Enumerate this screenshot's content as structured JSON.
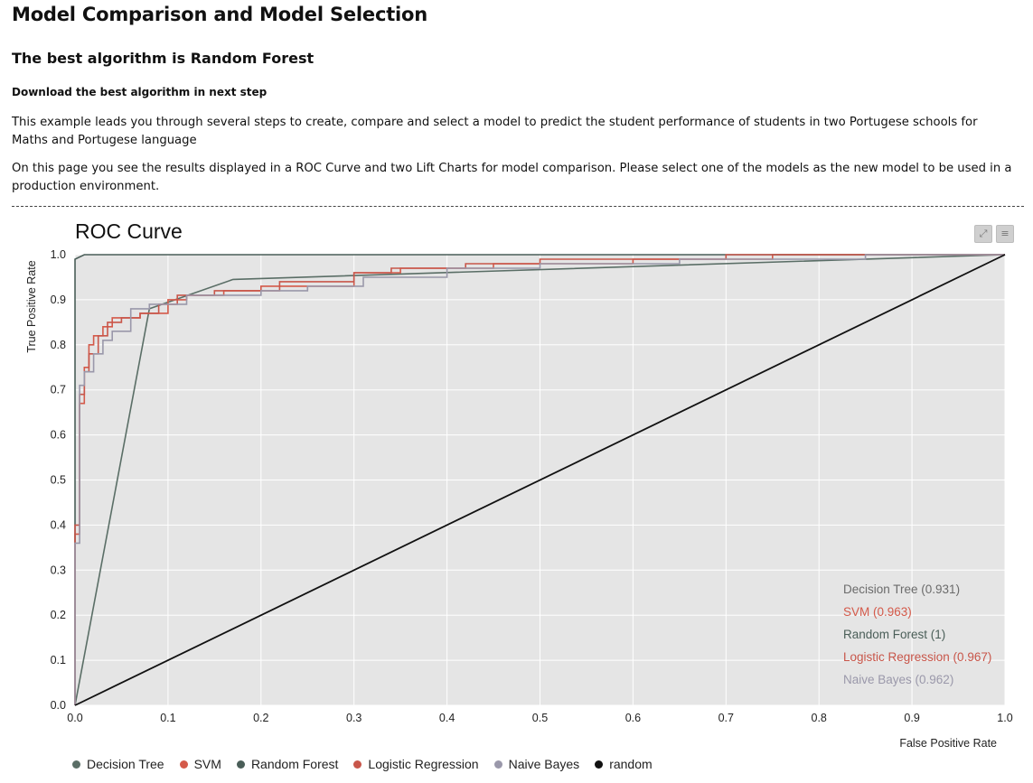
{
  "header": {
    "title": "Model Comparison and Model Selection",
    "best_label": "The best algorithm is Random Forest",
    "download_label": "Download the best algorithm in next step"
  },
  "intro": {
    "p1": "This example leads you through several steps to create, compare and select a model to predict the student performance of students in two Portugese schools for Maths and Portugese language",
    "p2": "On this page you see the results displayed in a ROC Curve and two Lift Charts for model comparison. Please select one of the models as the new model to be used in a production environment."
  },
  "toolbar": {
    "expand_icon": "expand-icon",
    "menu_icon": "menu-icon"
  },
  "chart_data": {
    "type": "line",
    "title": "ROC Curve",
    "xlabel": "False Positive Rate",
    "ylabel": "True Positive Rate",
    "xlim": [
      0,
      1
    ],
    "ylim": [
      0,
      1
    ],
    "xticks": [
      "0.0",
      "0.1",
      "0.2",
      "0.3",
      "0.4",
      "0.5",
      "0.6",
      "0.7",
      "0.8",
      "0.9",
      "1.0"
    ],
    "yticks": [
      "0.0",
      "0.1",
      "0.2",
      "0.3",
      "0.4",
      "0.5",
      "0.6",
      "0.7",
      "0.8",
      "0.9",
      "1.0"
    ],
    "grid": true,
    "legend_position": "bottom",
    "auc_labels": [
      {
        "text": "Decision Tree (0.931)",
        "color": "#6b6b6b"
      },
      {
        "text": "SVM (0.963)",
        "color": "#d45a4a"
      },
      {
        "text": "Random Forest (1)",
        "color": "#4a5e58"
      },
      {
        "text": "Logistic Regression (0.967)",
        "color": "#c8564a"
      },
      {
        "text": "Naive Bayes (0.962)",
        "color": "#9a98aa"
      }
    ],
    "series": [
      {
        "name": "Decision Tree",
        "color": "#5a6e66",
        "points": [
          [
            0,
            0
          ],
          [
            0.08,
            0.88
          ],
          [
            0.17,
            0.945
          ],
          [
            1,
            1
          ]
        ]
      },
      {
        "name": "SVM",
        "color": "#d45a4a",
        "points": [
          [
            0,
            0
          ],
          [
            0,
            0.38
          ],
          [
            0.005,
            0.38
          ],
          [
            0.005,
            0.67
          ],
          [
            0.01,
            0.67
          ],
          [
            0.01,
            0.75
          ],
          [
            0.015,
            0.75
          ],
          [
            0.015,
            0.8
          ],
          [
            0.02,
            0.8
          ],
          [
            0.02,
            0.82
          ],
          [
            0.03,
            0.82
          ],
          [
            0.03,
            0.84
          ],
          [
            0.04,
            0.84
          ],
          [
            0.04,
            0.86
          ],
          [
            0.05,
            0.86
          ],
          [
            0.07,
            0.86
          ],
          [
            0.07,
            0.87
          ],
          [
            0.1,
            0.87
          ],
          [
            0.1,
            0.9
          ],
          [
            0.12,
            0.9
          ],
          [
            0.12,
            0.91
          ],
          [
            0.16,
            0.91
          ],
          [
            0.16,
            0.92
          ],
          [
            0.2,
            0.92
          ],
          [
            0.2,
            0.93
          ],
          [
            0.3,
            0.93
          ],
          [
            0.3,
            0.96
          ],
          [
            0.35,
            0.96
          ],
          [
            0.35,
            0.97
          ],
          [
            0.45,
            0.97
          ],
          [
            0.45,
            0.98
          ],
          [
            0.6,
            0.98
          ],
          [
            0.6,
            0.99
          ],
          [
            0.75,
            0.99
          ],
          [
            0.75,
            1
          ],
          [
            1,
            1
          ]
        ]
      },
      {
        "name": "Random Forest",
        "color": "#4a5e58",
        "points": [
          [
            0,
            0
          ],
          [
            0,
            0.99
          ],
          [
            0.01,
            1
          ],
          [
            1,
            1
          ]
        ]
      },
      {
        "name": "Logistic Regression",
        "color": "#c8564a",
        "points": [
          [
            0,
            0
          ],
          [
            0,
            0.4
          ],
          [
            0.005,
            0.4
          ],
          [
            0.005,
            0.69
          ],
          [
            0.01,
            0.69
          ],
          [
            0.01,
            0.74
          ],
          [
            0.015,
            0.74
          ],
          [
            0.015,
            0.78
          ],
          [
            0.025,
            0.78
          ],
          [
            0.025,
            0.82
          ],
          [
            0.035,
            0.82
          ],
          [
            0.035,
            0.85
          ],
          [
            0.05,
            0.85
          ],
          [
            0.05,
            0.86
          ],
          [
            0.07,
            0.86
          ],
          [
            0.07,
            0.87
          ],
          [
            0.09,
            0.87
          ],
          [
            0.09,
            0.89
          ],
          [
            0.11,
            0.89
          ],
          [
            0.11,
            0.91
          ],
          [
            0.15,
            0.91
          ],
          [
            0.15,
            0.92
          ],
          [
            0.22,
            0.92
          ],
          [
            0.22,
            0.94
          ],
          [
            0.3,
            0.94
          ],
          [
            0.3,
            0.96
          ],
          [
            0.34,
            0.96
          ],
          [
            0.34,
            0.97
          ],
          [
            0.42,
            0.97
          ],
          [
            0.42,
            0.98
          ],
          [
            0.5,
            0.98
          ],
          [
            0.5,
            0.99
          ],
          [
            0.7,
            0.99
          ],
          [
            0.7,
            1
          ],
          [
            1,
            1
          ]
        ]
      },
      {
        "name": "Naive Bayes",
        "color": "#9a98aa",
        "points": [
          [
            0,
            0
          ],
          [
            0,
            0.36
          ],
          [
            0.005,
            0.36
          ],
          [
            0.005,
            0.71
          ],
          [
            0.01,
            0.71
          ],
          [
            0.01,
            0.74
          ],
          [
            0.02,
            0.74
          ],
          [
            0.02,
            0.78
          ],
          [
            0.03,
            0.78
          ],
          [
            0.03,
            0.81
          ],
          [
            0.04,
            0.81
          ],
          [
            0.04,
            0.83
          ],
          [
            0.06,
            0.83
          ],
          [
            0.06,
            0.88
          ],
          [
            0.08,
            0.88
          ],
          [
            0.08,
            0.89
          ],
          [
            0.12,
            0.89
          ],
          [
            0.12,
            0.91
          ],
          [
            0.2,
            0.91
          ],
          [
            0.2,
            0.92
          ],
          [
            0.25,
            0.92
          ],
          [
            0.25,
            0.93
          ],
          [
            0.31,
            0.93
          ],
          [
            0.31,
            0.95
          ],
          [
            0.4,
            0.95
          ],
          [
            0.4,
            0.97
          ],
          [
            0.5,
            0.97
          ],
          [
            0.5,
            0.98
          ],
          [
            0.65,
            0.98
          ],
          [
            0.65,
            0.99
          ],
          [
            0.85,
            0.99
          ],
          [
            0.85,
            1
          ],
          [
            1,
            1
          ]
        ]
      },
      {
        "name": "random",
        "color": "#111111",
        "points": [
          [
            0,
            0
          ],
          [
            1,
            1
          ]
        ]
      }
    ]
  }
}
